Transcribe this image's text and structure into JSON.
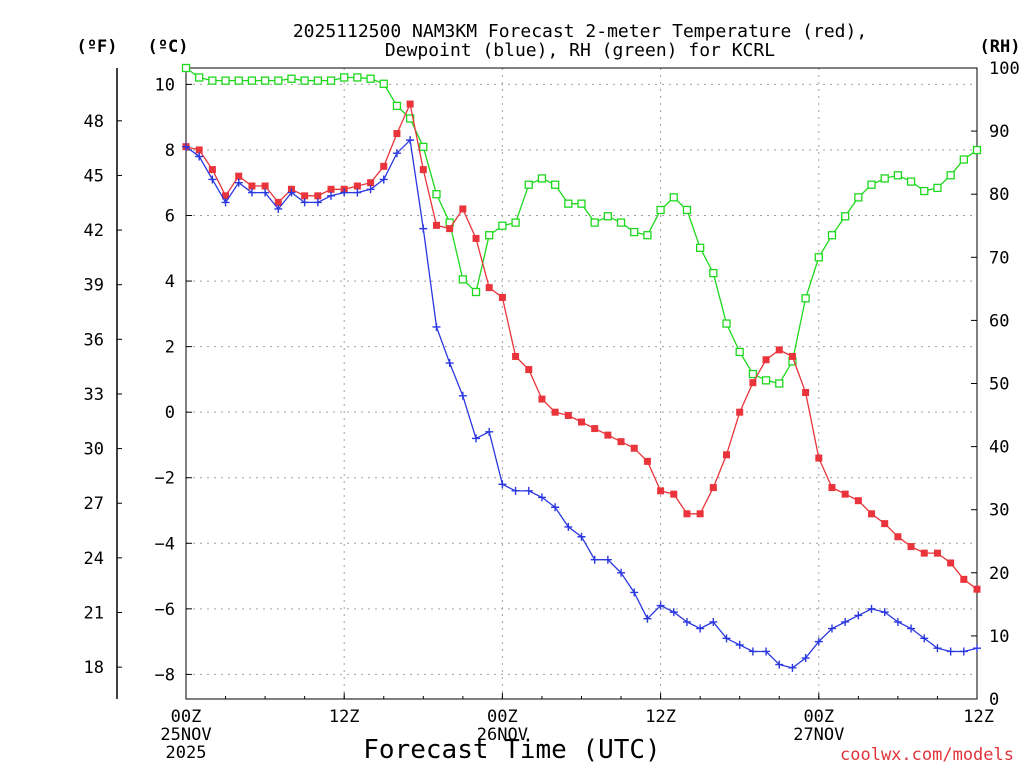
{
  "chart_data": {
    "type": "line",
    "title_line1": "2025112500 NAM3KM Forecast 2-meter Temperature (red),",
    "title_line2": "Dewpoint (blue), RH (green) for KCRL",
    "xlabel": "Forecast Time (UTC)",
    "credit": "coolwx.com/models",
    "x_unit": "hours since 2025-11-25 00Z",
    "xlim": [
      0,
      60
    ],
    "x_ticks": [
      {
        "x": 0,
        "line1": "00Z",
        "line2": "25NOV",
        "line3": "2025"
      },
      {
        "x": 12,
        "line1": "12Z",
        "line2": "",
        "line3": ""
      },
      {
        "x": 24,
        "line1": "00Z",
        "line2": "26NOV",
        "line3": ""
      },
      {
        "x": 36,
        "line1": "12Z",
        "line2": "",
        "line3": ""
      },
      {
        "x": 48,
        "line1": "00Z",
        "line2": "27NOV",
        "line3": ""
      },
      {
        "x": 60,
        "line1": "12Z",
        "line2": "",
        "line3": ""
      }
    ],
    "y_left_c": {
      "label": "(ºC)",
      "ylim": [
        -8.75,
        10.5
      ],
      "ticks": [
        10,
        8,
        6,
        4,
        2,
        0,
        -2,
        -4,
        -6,
        -8
      ]
    },
    "y_left_f": {
      "label": "(ºF)",
      "ticks": [
        48,
        45,
        42,
        39,
        36,
        33,
        30,
        27,
        24,
        21,
        18
      ]
    },
    "y_right_rh": {
      "label": "(RH)",
      "ylim": [
        0,
        100
      ],
      "ticks": [
        100,
        90,
        80,
        70,
        60,
        50,
        40,
        30,
        20,
        10,
        0
      ]
    },
    "x": [
      0,
      1,
      2,
      3,
      4,
      5,
      6,
      7,
      8,
      9,
      10,
      11,
      12,
      13,
      14,
      15,
      16,
      17,
      18,
      19,
      20,
      21,
      22,
      23,
      24,
      25,
      26,
      27,
      28,
      29,
      30,
      31,
      32,
      33,
      34,
      35,
      36,
      37,
      38,
      39,
      40,
      41,
      42,
      43,
      44,
      45,
      46,
      47,
      48,
      49,
      50,
      51,
      52,
      53,
      54,
      55,
      56,
      57,
      58,
      59,
      60
    ],
    "series": [
      {
        "name": "2-meter Temperature",
        "unit": "C",
        "color": "#e8343a",
        "marker": "filled-square",
        "values": [
          8.1,
          8.0,
          7.4,
          6.6,
          7.2,
          6.9,
          6.9,
          6.4,
          6.8,
          6.6,
          6.6,
          6.8,
          6.8,
          6.9,
          7.0,
          7.5,
          8.5,
          9.4,
          7.4,
          5.7,
          5.6,
          6.2,
          5.3,
          3.8,
          3.5,
          1.7,
          1.3,
          0.4,
          0.0,
          -0.1,
          -0.3,
          -0.5,
          -0.7,
          -0.9,
          -1.1,
          -1.5,
          -2.4,
          -2.5,
          -3.1,
          -3.1,
          -2.3,
          -1.3,
          0.0,
          0.9,
          1.6,
          1.9,
          1.7,
          0.6,
          -1.4,
          -2.3,
          -2.5,
          -2.7,
          -3.1,
          -3.4,
          -3.8,
          -4.1,
          -4.3,
          -4.3,
          -4.6,
          -5.1,
          -5.4
        ]
      },
      {
        "name": "Dewpoint",
        "unit": "C",
        "color": "#2b38e0",
        "marker": "plus",
        "values": [
          8.1,
          7.8,
          7.1,
          6.4,
          7.0,
          6.7,
          6.7,
          6.2,
          6.7,
          6.4,
          6.4,
          6.6,
          6.7,
          6.7,
          6.8,
          7.1,
          7.9,
          8.3,
          5.6,
          2.6,
          1.5,
          0.5,
          -0.8,
          -0.6,
          -2.2,
          -2.4,
          -2.4,
          -2.6,
          -2.9,
          -3.5,
          -3.8,
          -4.5,
          -4.5,
          -4.9,
          -5.5,
          -6.3,
          -5.9,
          -6.1,
          -6.4,
          -6.6,
          -6.4,
          -6.9,
          -7.1,
          -7.3,
          -7.3,
          -7.7,
          -7.8,
          -7.5,
          -7.0,
          -6.6,
          -6.4,
          -6.2,
          -6.0,
          -6.1,
          -6.4,
          -6.6,
          -6.9,
          -7.2,
          -7.3,
          -7.3,
          -7.2
        ]
      },
      {
        "name": "RH",
        "unit": "%",
        "color": "#1ed81e",
        "marker": "open-square",
        "values": [
          100,
          98.5,
          98,
          98,
          98,
          98,
          98,
          98,
          98.3,
          98,
          98,
          98,
          98.5,
          98.5,
          98.3,
          97.5,
          94,
          92,
          87.5,
          80,
          75.5,
          66.5,
          64.5,
          73.5,
          75,
          75.5,
          81.5,
          82.5,
          81.5,
          78.5,
          78.5,
          75.5,
          76.5,
          75.5,
          74,
          73.5,
          77.5,
          79.5,
          77.5,
          71.5,
          67.5,
          59.5,
          55,
          51.5,
          50.5,
          50,
          53.5,
          63.5,
          70,
          73.5,
          76.5,
          79.5,
          81.5,
          82.5,
          83,
          82,
          80.5,
          81,
          83,
          85.5,
          87
        ]
      }
    ]
  }
}
